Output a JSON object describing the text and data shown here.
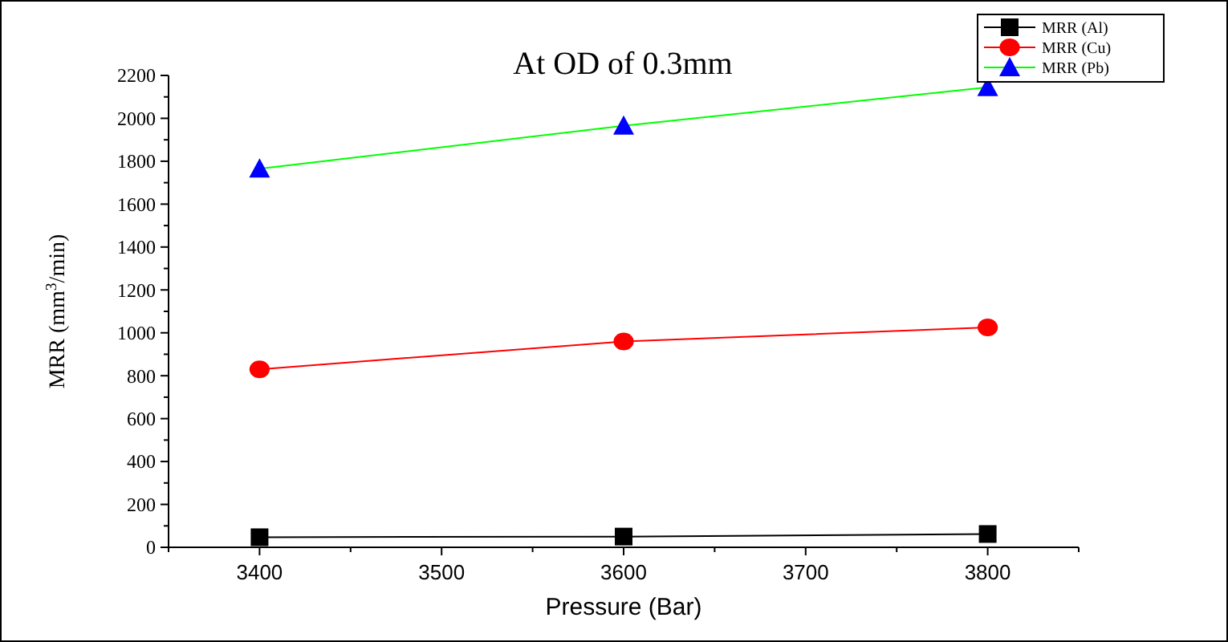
{
  "chart_data": {
    "type": "line",
    "title": "At OD of 0.3mm",
    "xlabel": "Pressure (Bar)",
    "ylabel": "MRR (mm$^{3}$/min)",
    "x": [
      3400,
      3600,
      3800
    ],
    "series": [
      {
        "name": "MRR (Al)",
        "color": "#000000",
        "marker": "square",
        "values": [
          47,
          50,
          62
        ]
      },
      {
        "name": "MRR (Cu)",
        "color": "#ff0000",
        "marker": "circle",
        "values": [
          830,
          960,
          1025
        ]
      },
      {
        "name": "MRR (Pb)",
        "color": "#00ff00",
        "colors": [
          "#0000ff",
          "#0000ff",
          "#0000ff"
        ],
        "marker": "triangle",
        "values": [
          1765,
          1965,
          2145
        ]
      }
    ],
    "xlim": [
      3350,
      3850
    ],
    "xticks": [
      3400,
      3500,
      3600,
      3700,
      3800
    ],
    "ylim": [
      0,
      2200
    ],
    "yticks": [
      0,
      200,
      400,
      600,
      800,
      1000,
      1200,
      1400,
      1600,
      1800,
      2000,
      2200
    ],
    "grid": false,
    "legend": "top right",
    "line_style": "solid"
  }
}
